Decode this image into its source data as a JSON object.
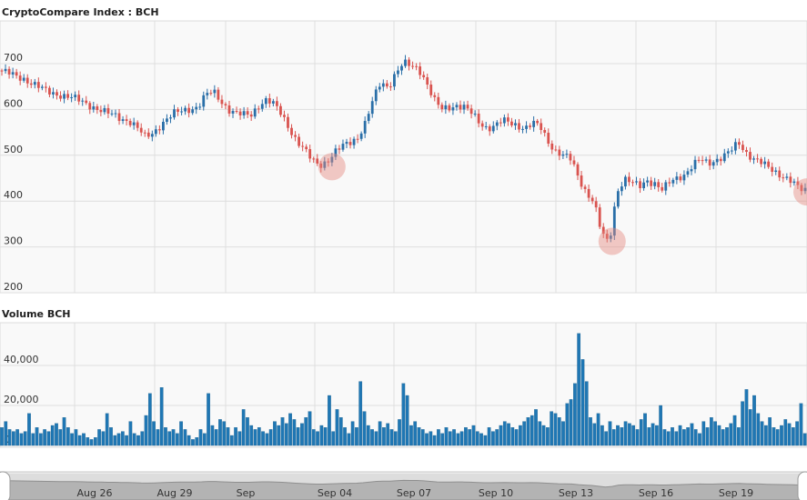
{
  "chart_data": [
    {
      "type": "candlestick",
      "title": "CryptoCompare Index : BCH",
      "yticks": [
        200,
        300,
        400,
        500,
        600,
        700
      ],
      "ylim": [
        200,
        720
      ],
      "up_color": "#2a6fa8",
      "down_color": "#d9534f",
      "close_series": [
        [
          0,
          685
        ],
        [
          0.5,
          680
        ],
        [
          1,
          672
        ],
        [
          1.5,
          668
        ],
        [
          2,
          660
        ],
        [
          2.5,
          650
        ],
        [
          3,
          640
        ],
        [
          3.5,
          635
        ],
        [
          4,
          632
        ],
        [
          4.5,
          628
        ],
        [
          5,
          622
        ],
        [
          5.5,
          615
        ],
        [
          6,
          608
        ],
        [
          6.5,
          600
        ],
        [
          7,
          592
        ],
        [
          7.5,
          587
        ],
        [
          8,
          580
        ],
        [
          8.5,
          575
        ],
        [
          9,
          560
        ],
        [
          9.5,
          540
        ],
        [
          10,
          548
        ],
        [
          10.5,
          565
        ],
        [
          11,
          580
        ],
        [
          11.5,
          592
        ],
        [
          12,
          598
        ],
        [
          12.5,
          602
        ],
        [
          13,
          605
        ],
        [
          13.5,
          630
        ],
        [
          14,
          640
        ],
        [
          14.5,
          620
        ],
        [
          15,
          600
        ],
        [
          15.5,
          590
        ],
        [
          16,
          588
        ],
        [
          16.5,
          590
        ],
        [
          17,
          610
        ],
        [
          17.5,
          620
        ],
        [
          18,
          610
        ],
        [
          18.5,
          590
        ],
        [
          19,
          560
        ],
        [
          19.5,
          530
        ],
        [
          20,
          510
        ],
        [
          20.5,
          490
        ],
        [
          21,
          480
        ],
        [
          21.5,
          487
        ],
        [
          22,
          505
        ],
        [
          22.5,
          520
        ],
        [
          23,
          530
        ],
        [
          23.5,
          540
        ],
        [
          24,
          570
        ],
        [
          24.5,
          620
        ],
        [
          25,
          660
        ],
        [
          25.5,
          650
        ],
        [
          26,
          680
        ],
        [
          26.5,
          700
        ],
        [
          27,
          695
        ],
        [
          27.5,
          690
        ],
        [
          28,
          660
        ],
        [
          28.5,
          620
        ],
        [
          29,
          600
        ],
        [
          29.5,
          605
        ],
        [
          30,
          610
        ],
        [
          30.5,
          605
        ],
        [
          31,
          590
        ],
        [
          31.5,
          570
        ],
        [
          32,
          560
        ],
        [
          32.5,
          565
        ],
        [
          33,
          575
        ],
        [
          33.5,
          570
        ],
        [
          34,
          565
        ],
        [
          34.5,
          560
        ],
        [
          35,
          570
        ],
        [
          35.5,
          560
        ],
        [
          36,
          530
        ],
        [
          36.5,
          510
        ],
        [
          37,
          500
        ],
        [
          37.5,
          490
        ],
        [
          38,
          450
        ],
        [
          38.5,
          420
        ],
        [
          39,
          400
        ],
        [
          39.5,
          330
        ],
        [
          40,
          305
        ],
        [
          40.5,
          420
        ],
        [
          41,
          450
        ],
        [
          41.5,
          440
        ],
        [
          42,
          430
        ],
        [
          42.5,
          445
        ],
        [
          43,
          440
        ],
        [
          43.5,
          425
        ],
        [
          44,
          440
        ],
        [
          44.5,
          450
        ],
        [
          45,
          460
        ],
        [
          45.5,
          480
        ],
        [
          46,
          490
        ],
        [
          46.5,
          480
        ],
        [
          47,
          490
        ],
        [
          47.5,
          500
        ],
        [
          48,
          510
        ],
        [
          48.5,
          525
        ],
        [
          49,
          505
        ],
        [
          49.5,
          495
        ],
        [
          50,
          485
        ],
        [
          50.5,
          470
        ],
        [
          51,
          460
        ],
        [
          51.5,
          455
        ],
        [
          52,
          445
        ],
        [
          52.5,
          425
        ],
        [
          53,
          420
        ]
      ],
      "markers": [
        {
          "x": 21.8,
          "y": 475
        },
        {
          "x": 40.2,
          "y": 312
        },
        {
          "x": 53.0,
          "y": 420
        }
      ],
      "x_dates": [
        "Aug 26",
        "Aug 29",
        "Sep",
        "Sep 04",
        "Sep 07",
        "Sep 10",
        "Sep 13",
        "Sep 16",
        "Sep 19"
      ]
    },
    {
      "type": "bar",
      "title": "Volume BCH",
      "yticks": [
        0,
        20000,
        40000
      ],
      "ytick_labels": [
        "0",
        "20,000",
        "40,000"
      ],
      "ylim": [
        0,
        55000
      ],
      "color": "#1f77b4",
      "values": [
        9000,
        12000,
        8000,
        7000,
        8000,
        6000,
        7000,
        16000,
        6000,
        9000,
        6000,
        8000,
        7000,
        10000,
        11000,
        8000,
        14000,
        9000,
        6000,
        8000,
        5000,
        6000,
        4000,
        3000,
        4000,
        8000,
        7000,
        16000,
        9000,
        5000,
        6000,
        7000,
        5000,
        12000,
        6000,
        5000,
        7000,
        15000,
        26000,
        12000,
        8000,
        29000,
        9000,
        7000,
        8000,
        6000,
        12000,
        8000,
        5000,
        3000,
        4000,
        8000,
        6000,
        26000,
        10000,
        8000,
        13000,
        12000,
        9000,
        5000,
        9000,
        7000,
        18000,
        14000,
        10000,
        8000,
        9000,
        7000,
        6000,
        8000,
        12000,
        10000,
        14000,
        11000,
        16000,
        13000,
        9000,
        11000,
        14000,
        17000,
        8000,
        7000,
        10000,
        9000,
        25000,
        7000,
        18000,
        14000,
        9000,
        6000,
        12000,
        9000,
        32000,
        17000,
        10000,
        8000,
        7000,
        12000,
        9000,
        11000,
        8000,
        7000,
        13000,
        31000,
        25000,
        10000,
        12000,
        9000,
        8000,
        6000,
        7000,
        5000,
        8000,
        6000,
        9000,
        7000,
        8000,
        6000,
        7000,
        9000,
        8000,
        10000,
        7000,
        6000,
        5000,
        9000,
        7000,
        8000,
        10000,
        12000,
        11000,
        9000,
        8000,
        10000,
        12000,
        14000,
        15000,
        18000,
        12000,
        10000,
        9000,
        17000,
        16000,
        14000,
        12000,
        21000,
        23000,
        31000,
        56000,
        43000,
        32000,
        14000,
        11000,
        16000,
        10000,
        7000,
        12000,
        8000,
        10000,
        9000,
        12000,
        11000,
        10000,
        8000,
        13000,
        16000,
        9000,
        11000,
        10000,
        20000,
        8000,
        7000,
        9000,
        7000,
        10000,
        8000,
        9000,
        11000,
        8000,
        6000,
        12000,
        9000,
        14000,
        12000,
        10000,
        8000,
        9000,
        11000,
        15000,
        9000,
        22000,
        28000,
        18000,
        25000,
        16000,
        12000,
        10000,
        14000,
        9000,
        8000,
        10000,
        13000,
        11000,
        9000,
        12000,
        21000,
        6000
      ]
    }
  ],
  "navigator": {
    "dates": [
      "Aug 26",
      "Aug 29",
      "Sep",
      "Sep 04",
      "Sep 07",
      "Sep 10",
      "Sep 13",
      "Sep 16",
      "Sep 19"
    ]
  }
}
